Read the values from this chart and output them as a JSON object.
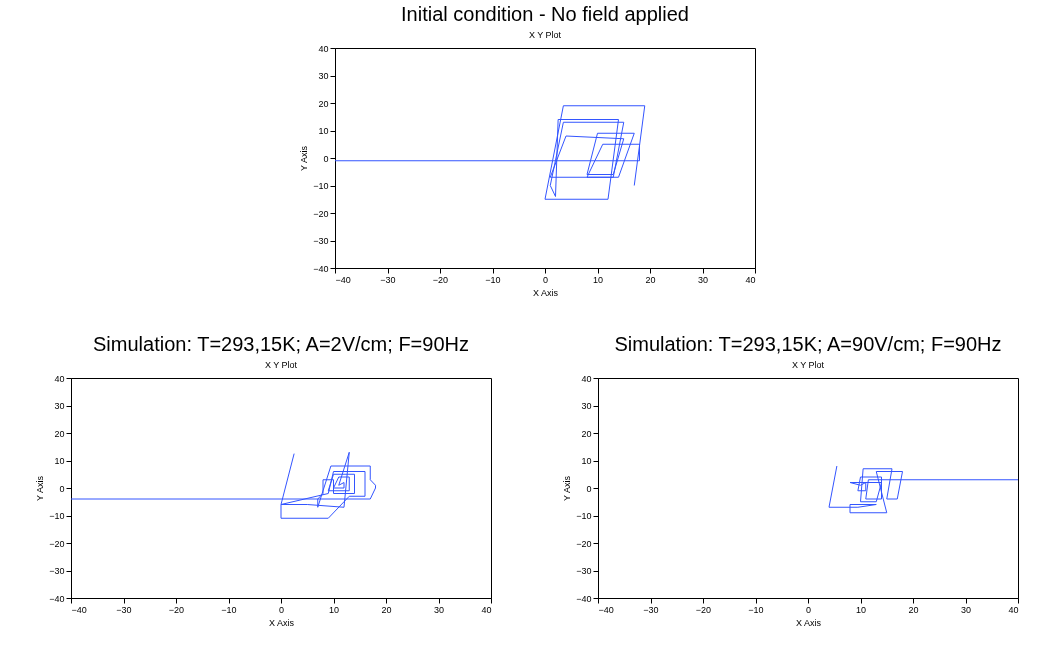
{
  "chart_data": [
    {
      "type": "line",
      "title": "Initial condition - No field applied",
      "subtitle": "X Y Plot",
      "xlabel": "X Axis",
      "ylabel": "Y Axis",
      "xlim": [
        -40,
        40
      ],
      "ylim": [
        -40,
        40
      ],
      "xticks": [
        -40,
        -30,
        -20,
        -10,
        0,
        10,
        20,
        30,
        40
      ],
      "yticks": [
        -40,
        -30,
        -20,
        -10,
        0,
        10,
        20,
        30,
        40
      ],
      "grid": false,
      "series": [
        {
          "color": "#3355ff",
          "x": [
            -40,
            18,
            18,
            11,
            8,
            14,
            17,
            10,
            8,
            13,
            15,
            4,
            1,
            13,
            15,
            3.5,
            1,
            2,
            2.5,
            14,
            12,
            0,
            3.5,
            19,
            17
          ],
          "values": [
            -1,
            -1,
            5,
            5,
            -7,
            -7,
            9,
            9,
            -6,
            -6,
            7,
            8,
            -7,
            -7,
            13,
            13,
            -10,
            -14,
            14,
            14,
            -15,
            -15,
            19,
            19,
            -10
          ]
        }
      ]
    },
    {
      "type": "line",
      "title": "Simulation: T=293,15K; A=2V/cm; F=90Hz",
      "subtitle": "X Y Plot",
      "xlabel": "X Axis",
      "ylabel": "Y Axis",
      "xlim": [
        -40,
        40
      ],
      "ylim": [
        -40,
        40
      ],
      "xticks": [
        -40,
        -30,
        -20,
        -10,
        0,
        10,
        20,
        30,
        40
      ],
      "yticks": [
        -40,
        -30,
        -20,
        -10,
        0,
        10,
        20,
        30,
        40
      ],
      "grid": false,
      "series": [
        {
          "color": "#3355ff",
          "x": [
            -40,
            17,
            18,
            18,
            17,
            17,
            9.5,
            7,
            7,
            8,
            8,
            10,
            10,
            14,
            14,
            10,
            9,
            13,
            13,
            11,
            10,
            12,
            12,
            11,
            13,
            12,
            5,
            0,
            0,
            9,
            13,
            16,
            16,
            10,
            9,
            0,
            2.5
          ],
          "values": [
            -4,
            -4,
            0,
            1,
            3,
            8,
            8,
            -7,
            -4,
            -2,
            3,
            3,
            -2,
            -2,
            5,
            5,
            -1,
            -1,
            4,
            4,
            0,
            0,
            2,
            1,
            13,
            -7,
            -6,
            -6,
            -11,
            -11,
            -3,
            -3,
            6,
            6,
            -2,
            -6,
            12.5
          ]
        }
      ]
    },
    {
      "type": "line",
      "title": "Simulation: T=293,15K; A=90V/cm; F=90Hz",
      "subtitle": "X Y Plot",
      "xlabel": "X Axis",
      "ylabel": "Y Axis",
      "xlim": [
        -40,
        40
      ],
      "ylim": [
        -40,
        40
      ],
      "xticks": [
        -40,
        -30,
        -20,
        -10,
        0,
        10,
        20,
        30,
        40
      ],
      "yticks": [
        -40,
        -30,
        -20,
        -10,
        0,
        10,
        20,
        30,
        40
      ],
      "grid": false,
      "series": [
        {
          "color": "#3355ff",
          "x": [
            40,
            11.5,
            11,
            14,
            14,
            10,
            9.5,
            11,
            11,
            10,
            8,
            14,
            13,
            10,
            10.5,
            16,
            15,
            17,
            18,
            13,
            15,
            8,
            8,
            13,
            9.5,
            4,
            5.5
          ],
          "values": [
            3,
            3,
            -4,
            -4,
            4,
            4,
            -1,
            -1,
            2,
            1,
            2,
            2,
            -5,
            -5,
            7,
            7,
            -4,
            -4,
            6,
            6,
            -9,
            -9,
            -6,
            -6,
            -7,
            -7,
            8
          ]
        }
      ]
    }
  ]
}
